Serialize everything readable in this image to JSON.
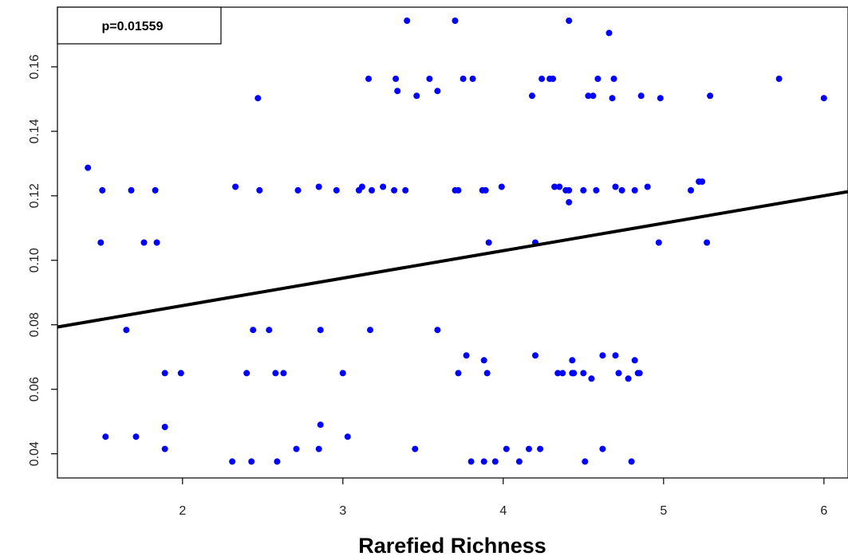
{
  "chart_data": {
    "type": "scatter",
    "title": "",
    "xlabel": "Rarefied Richness",
    "ylabel": "",
    "xlim": [
      1.22,
      6.15
    ],
    "ylim": [
      0.0325,
      0.1785
    ],
    "x_ticks": [
      2,
      3,
      4,
      5,
      6
    ],
    "y_ticks": [
      0.04,
      0.06,
      0.08,
      0.1,
      0.12,
      0.14,
      0.16
    ],
    "x_tick_labels": [
      "2",
      "3",
      "4",
      "5",
      "6"
    ],
    "y_tick_labels": [
      "0.04",
      "0.06",
      "0.08",
      "0.10",
      "0.12",
      "0.14",
      "0.16"
    ],
    "annotation": "p=0.01559",
    "point_color": "#0000ff",
    "line_color": "#000000",
    "grid": false,
    "fit_line": {
      "x": [
        1.22,
        6.15
      ],
      "y": [
        0.0793,
        0.1213
      ]
    },
    "points": [
      [
        1.41,
        0.1287
      ],
      [
        1.49,
        0.1055
      ],
      [
        1.5,
        0.1217
      ],
      [
        1.52,
        0.0453
      ],
      [
        1.65,
        0.0784
      ],
      [
        1.68,
        0.1217
      ],
      [
        1.71,
        0.0453
      ],
      [
        1.76,
        0.1055
      ],
      [
        1.83,
        0.1217
      ],
      [
        1.84,
        0.1055
      ],
      [
        1.89,
        0.065
      ],
      [
        1.89,
        0.0483
      ],
      [
        1.89,
        0.0415
      ],
      [
        1.99,
        0.065
      ],
      [
        2.31,
        0.0376
      ],
      [
        2.33,
        0.1228
      ],
      [
        2.4,
        0.065
      ],
      [
        2.43,
        0.0376
      ],
      [
        2.44,
        0.0784
      ],
      [
        2.47,
        0.1503
      ],
      [
        2.48,
        0.1217
      ],
      [
        2.54,
        0.0784
      ],
      [
        2.58,
        0.065
      ],
      [
        2.59,
        0.0376
      ],
      [
        2.63,
        0.065
      ],
      [
        2.71,
        0.0415
      ],
      [
        2.72,
        0.1217
      ],
      [
        2.85,
        0.1228
      ],
      [
        2.85,
        0.0415
      ],
      [
        2.86,
        0.0784
      ],
      [
        2.86,
        0.049
      ],
      [
        2.96,
        0.1217
      ],
      [
        3.0,
        0.065
      ],
      [
        3.03,
        0.0453
      ],
      [
        3.1,
        0.1217
      ],
      [
        3.12,
        0.1228
      ],
      [
        3.16,
        0.1563
      ],
      [
        3.17,
        0.0784
      ],
      [
        3.18,
        0.1217
      ],
      [
        3.25,
        0.1228
      ],
      [
        3.32,
        0.1217
      ],
      [
        3.33,
        0.1563
      ],
      [
        3.34,
        0.1525
      ],
      [
        3.39,
        0.1217
      ],
      [
        3.4,
        0.1743
      ],
      [
        3.45,
        0.0415
      ],
      [
        3.46,
        0.151
      ],
      [
        3.54,
        0.1563
      ],
      [
        3.59,
        0.0784
      ],
      [
        3.59,
        0.1525
      ],
      [
        3.7,
        0.1743
      ],
      [
        3.7,
        0.1217
      ],
      [
        3.72,
        0.065
      ],
      [
        3.72,
        0.1217
      ],
      [
        3.75,
        0.1563
      ],
      [
        3.77,
        0.0705
      ],
      [
        3.8,
        0.0376
      ],
      [
        3.81,
        0.1563
      ],
      [
        3.87,
        0.1217
      ],
      [
        3.88,
        0.0376
      ],
      [
        3.88,
        0.069
      ],
      [
        3.89,
        0.1217
      ],
      [
        3.9,
        0.065
      ],
      [
        3.91,
        0.1055
      ],
      [
        3.95,
        0.0376
      ],
      [
        3.99,
        0.1228
      ],
      [
        4.02,
        0.0415
      ],
      [
        4.1,
        0.0376
      ],
      [
        4.16,
        0.0415
      ],
      [
        4.18,
        0.151
      ],
      [
        4.2,
        0.0705
      ],
      [
        4.2,
        0.1055
      ],
      [
        4.23,
        0.0415
      ],
      [
        4.24,
        0.1563
      ],
      [
        4.29,
        0.1563
      ],
      [
        4.31,
        0.1563
      ],
      [
        4.32,
        0.1228
      ],
      [
        4.34,
        0.065
      ],
      [
        4.35,
        0.1228
      ],
      [
        4.37,
        0.065
      ],
      [
        4.39,
        0.1217
      ],
      [
        4.41,
        0.1743
      ],
      [
        4.41,
        0.1217
      ],
      [
        4.41,
        0.118
      ],
      [
        4.43,
        0.069
      ],
      [
        4.43,
        0.065
      ],
      [
        4.44,
        0.065
      ],
      [
        4.5,
        0.1217
      ],
      [
        4.5,
        0.065
      ],
      [
        4.51,
        0.0376
      ],
      [
        4.53,
        0.151
      ],
      [
        4.55,
        0.0633
      ],
      [
        4.56,
        0.151
      ],
      [
        4.58,
        0.1217
      ],
      [
        4.59,
        0.1563
      ],
      [
        4.62,
        0.0705
      ],
      [
        4.62,
        0.0415
      ],
      [
        4.66,
        0.1705
      ],
      [
        4.68,
        0.1503
      ],
      [
        4.69,
        0.1563
      ],
      [
        4.7,
        0.1228
      ],
      [
        4.7,
        0.0705
      ],
      [
        4.72,
        0.065
      ],
      [
        4.74,
        0.1217
      ],
      [
        4.78,
        0.0633
      ],
      [
        4.8,
        0.0376
      ],
      [
        4.82,
        0.069
      ],
      [
        4.82,
        0.1217
      ],
      [
        4.84,
        0.065
      ],
      [
        4.85,
        0.065
      ],
      [
        4.86,
        0.151
      ],
      [
        4.9,
        0.1228
      ],
      [
        4.97,
        0.1055
      ],
      [
        4.98,
        0.1503
      ],
      [
        5.17,
        0.1217
      ],
      [
        5.22,
        0.1244
      ],
      [
        5.24,
        0.1244
      ],
      [
        5.27,
        0.1055
      ],
      [
        5.29,
        0.151
      ],
      [
        5.72,
        0.1563
      ],
      [
        6.0,
        0.1503
      ]
    ]
  }
}
